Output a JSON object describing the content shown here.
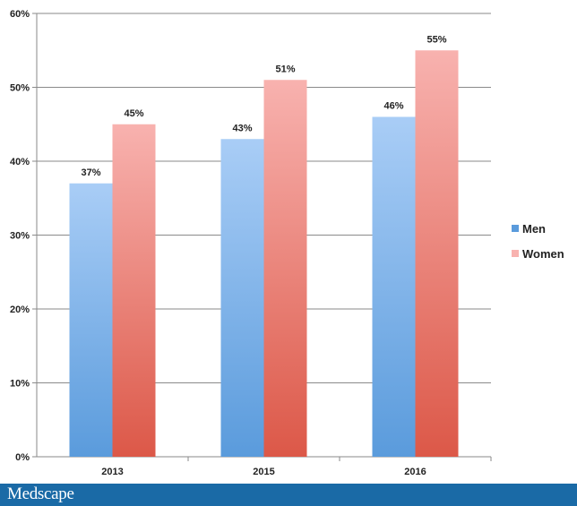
{
  "brand": {
    "name": "Medscape"
  },
  "chart_data": {
    "type": "bar",
    "categories": [
      "2013",
      "2015",
      "2016"
    ],
    "series": [
      {
        "name": "Men",
        "values": [
          37,
          43,
          46
        ],
        "labels": [
          "37%",
          "43%",
          "46%"
        ],
        "color_top": "#a9cdf6",
        "color_bottom": "#5a9bdc"
      },
      {
        "name": "Women",
        "values": [
          45,
          51,
          55
        ],
        "labels": [
          "45%",
          "51%",
          "55%"
        ],
        "color_top": "#f8b2af",
        "color_bottom": "#dc5848"
      }
    ],
    "ylim": [
      0,
      60
    ],
    "yticks": [
      0,
      10,
      20,
      30,
      40,
      50,
      60
    ],
    "yticklabels": [
      "0%",
      "10%",
      "20%",
      "30%",
      "40%",
      "50%",
      "60%"
    ],
    "grid": true,
    "legend": "right"
  }
}
